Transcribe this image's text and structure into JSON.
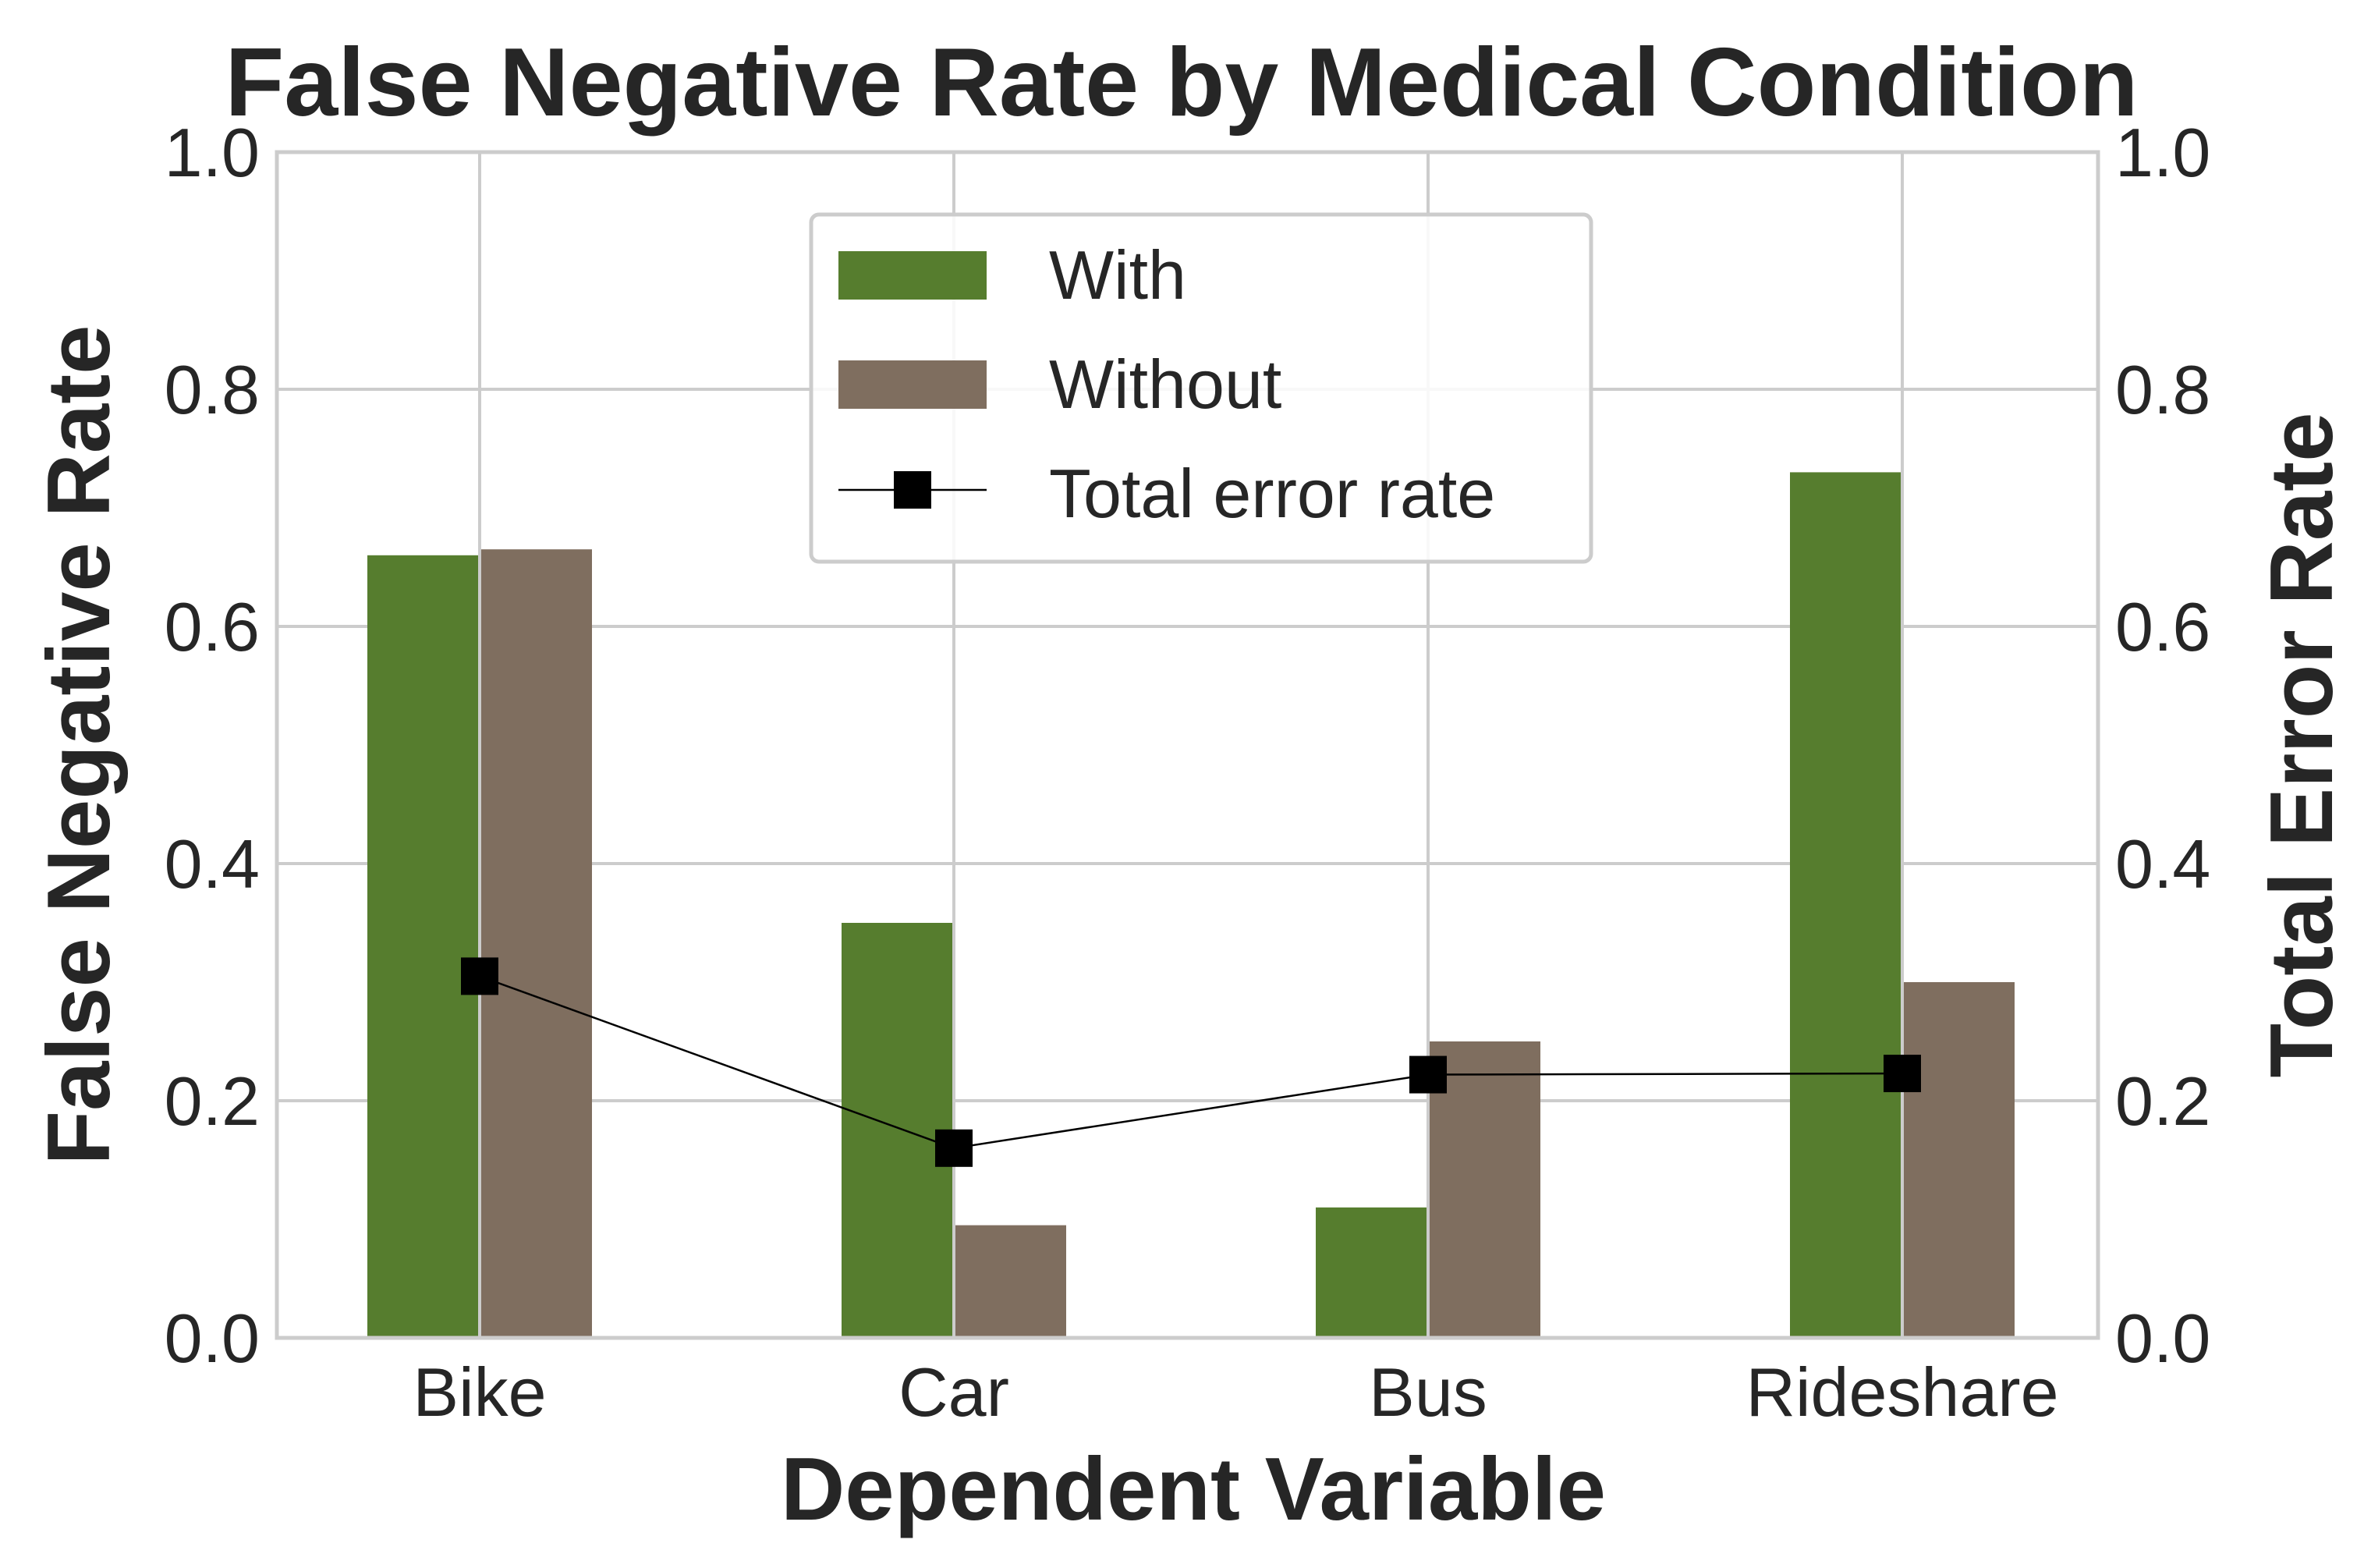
{
  "chart_data": {
    "type": "bar",
    "title": "False Negative Rate by Medical Condition",
    "xlabel": "Dependent Variable",
    "ylabel": "False Negative Rate",
    "y2label": "Total Error Rate",
    "categories": [
      "Bike",
      "Car",
      "Bus",
      "Rideshare"
    ],
    "ylim": [
      0,
      1.0
    ],
    "y2lim": [
      0,
      1.0
    ],
    "yticks": [
      "0.0",
      "0.2",
      "0.4",
      "0.6",
      "0.8",
      "1.0"
    ],
    "y2ticks": [
      "0.0",
      "0.2",
      "0.4",
      "0.6",
      "0.8",
      "1.0"
    ],
    "grid": true,
    "legend_position": "top-center",
    "series": [
      {
        "name": "With",
        "kind": "bar",
        "color": "#567d2e",
        "values": [
          0.66,
          0.35,
          0.11,
          0.73
        ]
      },
      {
        "name": "Without",
        "kind": "bar",
        "color": "#7f6e5f",
        "values": [
          0.665,
          0.095,
          0.25,
          0.3
        ]
      },
      {
        "name": "Total error rate",
        "kind": "line",
        "axis": "right",
        "color": "#000000",
        "marker": "square",
        "values": [
          0.305,
          0.16,
          0.222,
          0.223
        ]
      }
    ]
  }
}
